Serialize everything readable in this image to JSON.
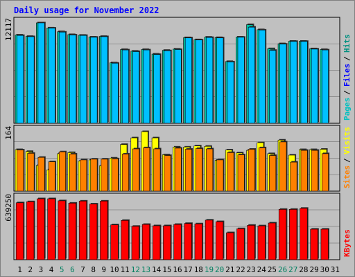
{
  "chart_data": {
    "type": "bar",
    "title": "Daily usage for November 2022",
    "categories": [
      "1",
      "2",
      "3",
      "4",
      "5",
      "6",
      "7",
      "8",
      "9",
      "10",
      "11",
      "12",
      "13",
      "14",
      "15",
      "16",
      "17",
      "18",
      "19",
      "20",
      "21",
      "22",
      "23",
      "24",
      "25",
      "26",
      "27",
      "28",
      "29",
      "30",
      "31"
    ],
    "weekend_days": [
      "5",
      "6",
      "12",
      "13",
      "19",
      "20",
      "26",
      "27"
    ],
    "panels": [
      {
        "name": "hits-files-pages",
        "ymax_label": "12117",
        "ymax": 12117,
        "legend": [
          {
            "text": "Pages",
            "color": "#00c0c0"
          },
          {
            "text": "Files",
            "color": "#0000ff"
          },
          {
            "text": "Hits",
            "color": "#009080"
          }
        ],
        "series": [
          {
            "name": "Hits",
            "color": "#00c0a0",
            "values": [
              10650,
              10480,
              12117,
              11500,
              11050,
              10700,
              10620,
              10400,
              10480,
              7300,
              8900,
              8700,
              8900,
              8350,
              8800,
              8950,
              10330,
              10080,
              10390,
              10340,
              7450,
              10400,
              11900,
              11290,
              9000,
              9600,
              9900,
              9900,
              8990,
              8900,
              0
            ]
          },
          {
            "name": "Files",
            "color": "#00c0ff",
            "values": [
              10600,
              10450,
              12117,
              11480,
              11000,
              10650,
              10600,
              10380,
              10450,
              7250,
              8850,
              8650,
              8850,
              8300,
              8750,
              8900,
              10300,
              10050,
              10350,
              10300,
              7400,
              10380,
              11600,
              11250,
              8800,
              9550,
              9880,
              9880,
              8950,
              8850,
              0
            ]
          },
          {
            "name": "Pages",
            "color": "#00c0c0",
            "values": []
          }
        ]
      },
      {
        "name": "visits-sites",
        "ymax_label": "164",
        "ymax": 164,
        "legend": [
          {
            "text": "Sites",
            "color": "#ff8000"
          },
          {
            "text": "Visits",
            "color": "#ffff00"
          }
        ],
        "series": [
          {
            "name": "Visits",
            "color": "#ffff00",
            "values": [
              113,
              108,
              70,
              58,
              102,
              105,
              82,
              85,
              69,
              90,
              127,
              145,
              162,
              145,
              99,
              120,
              120,
              123,
              122,
              84,
              112,
              104,
              111,
              132,
              102,
              139,
              98,
              113,
              113,
              114,
              0
            ]
          },
          {
            "name": "Sites",
            "color": "#ff8000",
            "values": [
              112,
              103,
              92,
              80,
              107,
              101,
              85,
              87,
              87,
              88,
              101,
              115,
              118,
              115,
              97,
              117,
              114,
              116,
              115,
              85,
              105,
              99,
              114,
              118,
              97,
              134,
              79,
              111,
              111,
              102,
              0
            ]
          }
        ]
      },
      {
        "name": "kbytes",
        "ymax_label": "639250",
        "ymax": 639250,
        "legend": [
          {
            "text": "KBytes",
            "color": "#ff0000"
          }
        ],
        "series": [
          {
            "name": "KBytes",
            "color": "#ff0000",
            "values": [
              597000,
              608000,
              639250,
              639250,
              618000,
              593000,
              615000,
              584000,
              615000,
              366000,
              412000,
              350000,
              370000,
              356000,
              356000,
              370000,
              380000,
              376000,
              415000,
              399000,
              283000,
              325000,
              361000,
              355000,
              385000,
              528000,
              528000,
              539000,
              320000,
              320000,
              0
            ]
          }
        ]
      }
    ]
  }
}
